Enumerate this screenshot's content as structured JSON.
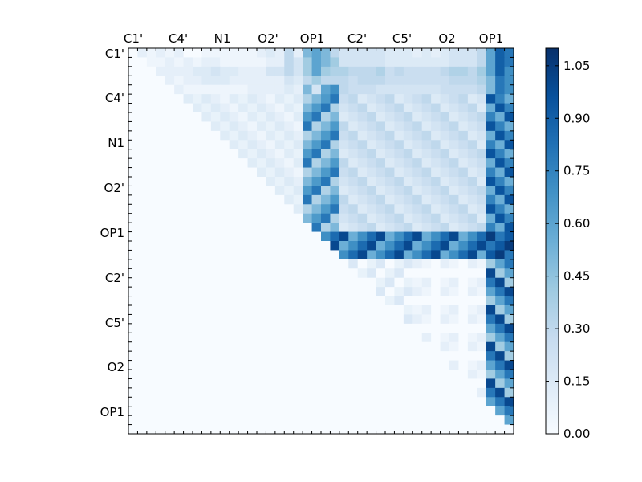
{
  "chart_data": {
    "type": "heatmap",
    "title": "",
    "xlabel": "",
    "ylabel": "",
    "x_tick_labels": [
      "C1'",
      "C4'",
      "N1",
      "O2'",
      "OP1",
      "C2'",
      "C5'",
      "O2",
      "OP1"
    ],
    "y_tick_labels": [
      "C1'",
      "C4'",
      "N1",
      "O2'",
      "OP1",
      "C2'",
      "C5'",
      "O2",
      "OP1"
    ],
    "colormap": "Blues",
    "color_range": [
      0,
      1.1
    ],
    "colorbar_tick_labels": [
      "0.00",
      "0.15",
      "0.30",
      "0.45",
      "0.60",
      "0.75",
      "0.90",
      "1.05"
    ],
    "matrix_size": 42,
    "matrix": "upper-triangular pairwise values; approximate per-cell values listed in values_by_row",
    "values_by_row": [
      [
        0.05,
        0.1,
        0.05,
        0.1,
        0.05,
        0.1,
        0.0,
        0.0,
        0.05,
        0.05,
        0.05,
        0.05,
        0.05,
        0.05,
        0.1,
        0.15,
        0.1,
        0.3,
        0.1,
        0.5,
        0.6,
        0.5,
        0.3,
        0.2,
        0.2,
        0.2,
        0.2,
        0.2,
        0.15,
        0.15,
        0.15,
        0.1,
        0.15,
        0.1,
        0.15,
        0.2,
        0.2,
        0.2,
        0.3,
        0.6,
        0.9,
        0.8
      ],
      [
        0,
        0,
        0.05,
        0.05,
        0.1,
        0.05,
        0.1,
        0.05,
        0.1,
        0.1,
        0.05,
        0.05,
        0.05,
        0.05,
        0.05,
        0.1,
        0.1,
        0.3,
        0.2,
        0.4,
        0.6,
        0.5,
        0.4,
        0.2,
        0.2,
        0.2,
        0.2,
        0.2,
        0.15,
        0.15,
        0.15,
        0.15,
        0.15,
        0.15,
        0.15,
        0.2,
        0.2,
        0.2,
        0.3,
        0.6,
        0.9,
        0.8
      ],
      [
        0,
        0,
        0,
        0.1,
        0.1,
        0.1,
        0.1,
        0.15,
        0.15,
        0.2,
        0.15,
        0.15,
        0.1,
        0.1,
        0.1,
        0.2,
        0.2,
        0.3,
        0.2,
        0.4,
        0.6,
        0.4,
        0.35,
        0.35,
        0.3,
        0.3,
        0.3,
        0.35,
        0.25,
        0.3,
        0.25,
        0.25,
        0.25,
        0.25,
        0.3,
        0.35,
        0.35,
        0.3,
        0.4,
        0.6,
        0.9,
        0.7
      ],
      [
        0,
        0,
        0,
        0,
        0.1,
        0.05,
        0.1,
        0.1,
        0.15,
        0.15,
        0.15,
        0.1,
        0.1,
        0.1,
        0.1,
        0.1,
        0.1,
        0.2,
        0.15,
        0.3,
        0.4,
        0.3,
        0.3,
        0.3,
        0.25,
        0.3,
        0.3,
        0.3,
        0.25,
        0.25,
        0.25,
        0.25,
        0.25,
        0.25,
        0.25,
        0.3,
        0.3,
        0.3,
        0.35,
        0.5,
        0.8,
        0.7
      ],
      [
        0,
        0,
        0,
        0,
        0,
        0.1,
        0.05,
        0.05,
        0.05,
        0.05,
        0.05,
        0.05,
        0.05,
        0.1,
        0.1,
        0.1,
        0.1,
        0.15,
        0.1,
        0.5,
        0.2,
        0.6,
        0.7,
        0.3,
        0.25,
        0.25,
        0.25,
        0.2,
        0.2,
        0.2,
        0.2,
        0.2,
        0.2,
        0.2,
        0.25,
        0.25,
        0.25,
        0.25,
        0.3,
        0.5,
        0.8,
        0.7
      ]
    ]
  }
}
